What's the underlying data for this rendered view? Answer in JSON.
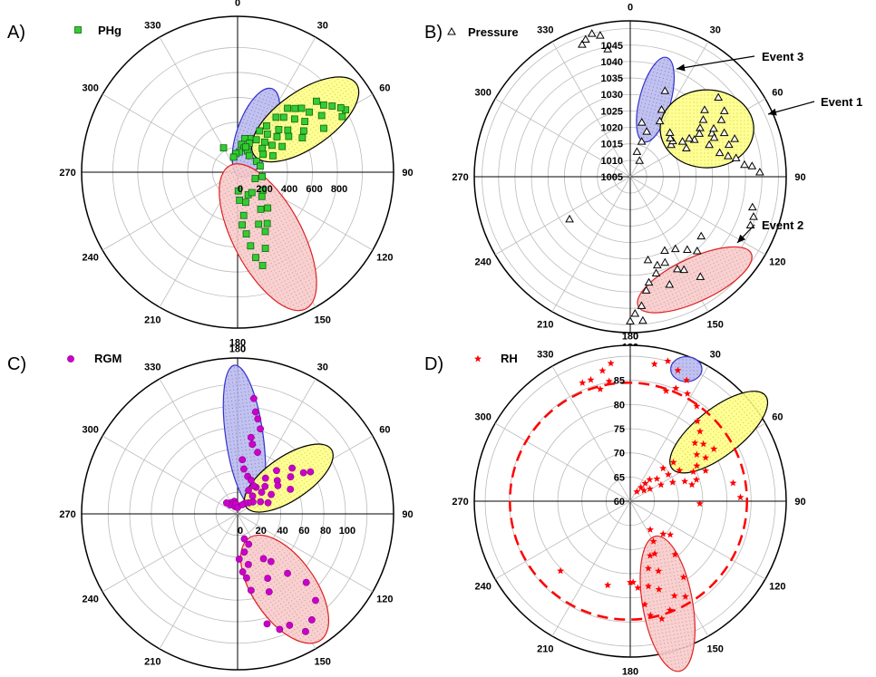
{
  "chart_data": [
    {
      "type": "polar-scatter",
      "panel_label": "A)",
      "legend": "PHg",
      "angular_ticks": [
        "0",
        "30",
        "60",
        "90",
        "120",
        "150",
        "180",
        "210",
        "240",
        "270",
        "300",
        "330"
      ],
      "radial_ticks": [
        "0",
        "200",
        "400",
        "600",
        "800"
      ],
      "rlim": [
        0,
        1000
      ],
      "marker": "square",
      "color": "#33cc33",
      "points": [
        [
          60,
          800
        ],
        [
          58,
          780
        ],
        [
          62,
          760
        ],
        [
          55,
          740
        ],
        [
          52,
          700
        ],
        [
          48,
          680
        ],
        [
          56,
          650
        ],
        [
          63,
          620
        ],
        [
          50,
          600
        ],
        [
          45,
          580
        ],
        [
          42,
          550
        ],
        [
          53,
          540
        ],
        [
          38,
          520
        ],
        [
          47,
          500
        ],
        [
          58,
          500
        ],
        [
          62,
          470
        ],
        [
          40,
          460
        ],
        [
          35,
          430
        ],
        [
          50,
          420
        ],
        [
          55,
          400
        ],
        [
          44,
          380
        ],
        [
          32,
          350
        ],
        [
          48,
          340
        ],
        [
          60,
          330
        ],
        [
          38,
          310
        ],
        [
          28,
          300
        ],
        [
          52,
          280
        ],
        [
          42,
          260
        ],
        [
          65,
          250
        ],
        [
          30,
          240
        ],
        [
          46,
          220
        ],
        [
          55,
          200
        ],
        [
          20,
          230
        ],
        [
          12,
          220
        ],
        [
          8,
          180
        ],
        [
          15,
          160
        ],
        [
          25,
          150
        ],
        [
          35,
          130
        ],
        [
          60,
          140
        ],
        [
          75,
          150
        ],
        [
          5,
          130
        ],
        [
          355,
          120
        ],
        [
          345,
          100
        ],
        [
          330,
          180
        ],
        [
          22,
          200
        ],
        [
          18,
          170
        ],
        [
          100,
          160
        ],
        [
          110,
          120
        ],
        [
          125,
          200
        ],
        [
          135,
          220
        ],
        [
          140,
          300
        ],
        [
          150,
          380
        ],
        [
          155,
          420
        ],
        [
          160,
          520
        ],
        [
          165,
          620
        ],
        [
          168,
          560
        ],
        [
          170,
          480
        ],
        [
          158,
          360
        ],
        [
          148,
          280
        ],
        [
          172,
          280
        ],
        [
          176,
          180
        ],
        [
          165,
          200
        ],
        [
          155,
          160
        ],
        [
          178,
          120
        ],
        [
          145,
          160
        ],
        [
          172,
          400
        ],
        [
          175,
          340
        ]
      ],
      "ellipses": [
        {
          "name": "blue",
          "color": "#3333cc",
          "fill": "#bbbbee"
        },
        {
          "name": "yellow",
          "color": "#000000",
          "fill": "#ffff88"
        },
        {
          "name": "red",
          "color": "#dd2222",
          "fill": "#f7cccc"
        }
      ]
    },
    {
      "type": "polar-scatter",
      "panel_label": "B)",
      "legend": "Pressure",
      "angular_ticks": [
        "0",
        "30",
        "60",
        "90",
        "120",
        "150",
        "180",
        "210",
        "240",
        "270",
        "300",
        "330"
      ],
      "radial_ticks": [
        "1005",
        "1010",
        "1015",
        "1020",
        "1025",
        "1030",
        "1035",
        "1040",
        "1045"
      ],
      "rlim": [
        1005,
        1045
      ],
      "marker": "triangle",
      "color": "#000000",
      "points": [
        [
          22,
          1030
        ],
        [
          25,
          1025
        ],
        [
          20,
          1018
        ],
        [
          15,
          1012
        ],
        [
          18,
          1015
        ],
        [
          28,
          1022
        ],
        [
          12,
          1020
        ],
        [
          30,
          1010
        ],
        [
          48,
          1032
        ],
        [
          52,
          1030
        ],
        [
          55,
          1028
        ],
        [
          58,
          1027
        ],
        [
          60,
          1025
        ],
        [
          62,
          1030
        ],
        [
          65,
          1033
        ],
        [
          70,
          1035
        ],
        [
          72,
          1033
        ],
        [
          68,
          1028
        ],
        [
          56,
          1022
        ],
        [
          63,
          1022
        ],
        [
          52,
          1019
        ],
        [
          50,
          1020
        ],
        [
          46,
          1020
        ],
        [
          42,
          1021
        ],
        [
          58,
          1034
        ],
        [
          55,
          1036
        ],
        [
          48,
          1037
        ],
        [
          75,
          1030
        ],
        [
          78,
          1032
        ],
        [
          80,
          1034
        ],
        [
          85,
          1038
        ],
        [
          88,
          1040
        ],
        [
          84,
          1036
        ],
        [
          65,
          1030
        ],
        [
          60,
          1031
        ],
        [
          57,
          1024
        ],
        [
          104,
          1039
        ],
        [
          108,
          1040
        ],
        [
          112,
          1040
        ],
        [
          130,
          1030
        ],
        [
          138,
          1032
        ],
        [
          142,
          1030
        ],
        [
          148,
          1028
        ],
        [
          150,
          1034
        ],
        [
          153,
          1033
        ],
        [
          158,
          1030
        ],
        [
          163,
          1030
        ],
        [
          165,
          1032
        ],
        [
          170,
          1034
        ],
        [
          175,
          1040
        ],
        [
          178,
          1042
        ],
        [
          180,
          1044
        ],
        [
          175,
          1044
        ],
        [
          172,
          1036
        ],
        [
          168,
          1028
        ],
        [
          160,
          1036
        ],
        [
          145,
          1038
        ],
        [
          155,
          1027
        ],
        [
          235,
          1025
        ],
        [
          340,
          1043
        ],
        [
          342,
          1044
        ],
        [
          345,
          1045
        ],
        [
          348,
          1044
        ],
        [
          350,
          1040
        ]
      ],
      "ellipses": [
        {
          "name": "blue",
          "color": "#3333cc",
          "fill": "#bbbbee"
        },
        {
          "name": "yellow",
          "color": "#000000",
          "fill": "#ffff88"
        },
        {
          "name": "red",
          "color": "#dd2222",
          "fill": "#f7cccc"
        }
      ],
      "annotations": [
        "Event 3",
        "Event 1",
        "Event 2"
      ]
    },
    {
      "type": "polar-scatter",
      "panel_label": "C)",
      "legend": "RGM",
      "angular_ticks": [
        "0",
        "30",
        "60",
        "90",
        "120",
        "150",
        "180",
        "210",
        "240",
        "270",
        "300",
        "330"
      ],
      "top_tick": "180",
      "radial_ticks": [
        "0",
        "20",
        "40",
        "60",
        "80",
        "100"
      ],
      "rlim": [
        0,
        120
      ],
      "marker": "circle",
      "color": "#cc00cc",
      "points": [
        [
          8,
          90
        ],
        [
          10,
          80
        ],
        [
          12,
          75
        ],
        [
          15,
          68
        ],
        [
          10,
          60
        ],
        [
          12,
          55
        ],
        [
          18,
          50
        ],
        [
          5,
          42
        ],
        [
          8,
          35
        ],
        [
          15,
          30
        ],
        [
          22,
          28
        ],
        [
          345,
          10
        ],
        [
          330,
          10
        ],
        [
          320,
          9
        ],
        [
          315,
          12
        ],
        [
          340,
          6
        ],
        [
          350,
          8
        ],
        [
          0,
          5
        ],
        [
          25,
          20
        ],
        [
          35,
          25
        ],
        [
          45,
          30
        ],
        [
          50,
          40
        ],
        [
          55,
          50
        ],
        [
          58,
          60
        ],
        [
          60,
          65
        ],
        [
          50,
          55
        ],
        [
          42,
          45
        ],
        [
          38,
          35
        ],
        [
          30,
          25
        ],
        [
          55,
          38
        ],
        [
          65,
          45
        ],
        [
          48,
          25
        ],
        [
          40,
          18
        ],
        [
          60,
          30
        ],
        [
          70,
          25
        ],
        [
          62,
          20
        ],
        [
          52,
          15
        ],
        [
          45,
          12
        ],
        [
          35,
          10
        ],
        [
          28,
          8
        ],
        [
          170,
          30
        ],
        [
          165,
          20
        ],
        [
          160,
          25
        ],
        [
          150,
          40
        ],
        [
          145,
          45
        ],
        [
          140,
          60
        ],
        [
          135,
          75
        ],
        [
          138,
          90
        ],
        [
          145,
          100
        ],
        [
          150,
          105
        ],
        [
          155,
          95
        ],
        [
          160,
          95
        ],
        [
          165,
          88
        ],
        [
          170,
          60
        ],
        [
          175,
          45
        ],
        [
          178,
          35
        ],
        [
          172,
          50
        ],
        [
          168,
          40
        ],
        [
          155,
          55
        ],
        [
          158,
          65
        ]
      ],
      "ellipses": [
        {
          "name": "blue",
          "color": "#3333cc",
          "fill": "#bbbbee"
        },
        {
          "name": "yellow",
          "color": "#000000",
          "fill": "#ffff88"
        },
        {
          "name": "red",
          "color": "#dd2222",
          "fill": "#f7cccc"
        }
      ]
    },
    {
      "type": "polar-scatter",
      "panel_label": "D)",
      "legend": "RH",
      "angular_ticks": [
        "0",
        "30",
        "60",
        "90",
        "120",
        "150",
        "180",
        "210",
        "240",
        "270",
        "300",
        "330"
      ],
      "top_tick": "180",
      "radial_ticks": [
        "60",
        "65",
        "70",
        "75",
        "80",
        "85"
      ],
      "rlim": [
        60,
        85
      ],
      "marker": "star",
      "color": "#ff0000",
      "points": [
        [
          345,
          80
        ],
        [
          342,
          82
        ],
        [
          348,
          83
        ],
        [
          350,
          81
        ],
        [
          338,
          82
        ],
        [
          352,
          84
        ],
        [
          10,
          84
        ],
        [
          15,
          85
        ],
        [
          20,
          84
        ],
        [
          25,
          83
        ],
        [
          22,
          81
        ],
        [
          18,
          80
        ],
        [
          28,
          81
        ],
        [
          35,
          80
        ],
        [
          40,
          78
        ],
        [
          45,
          77
        ],
        [
          48,
          75
        ],
        [
          52,
          76
        ],
        [
          55,
          74
        ],
        [
          58,
          77
        ],
        [
          60,
          75
        ],
        [
          62,
          73
        ],
        [
          65,
          72
        ],
        [
          58,
          70
        ],
        [
          55,
          68
        ],
        [
          50,
          66
        ],
        [
          48,
          70
        ],
        [
          45,
          68
        ],
        [
          42,
          65
        ],
        [
          40,
          64
        ],
        [
          38,
          63
        ],
        [
          35,
          62
        ],
        [
          52,
          63
        ],
        [
          58,
          64
        ],
        [
          62,
          66
        ],
        [
          66,
          68
        ],
        [
          70,
          70
        ],
        [
          72,
          72
        ],
        [
          68,
          74
        ],
        [
          75,
          71
        ],
        [
          80,
          78
        ],
        [
          88,
          79
        ],
        [
          92,
          72
        ],
        [
          130,
          69
        ],
        [
          135,
          68
        ],
        [
          140,
          72
        ],
        [
          145,
          76
        ],
        [
          150,
          79
        ],
        [
          155,
          78
        ],
        [
          160,
          80
        ],
        [
          165,
          81
        ],
        [
          170,
          80
        ],
        [
          172,
          78
        ],
        [
          168,
          75
        ],
        [
          165,
          72
        ],
        [
          160,
          70
        ],
        [
          155,
          70
        ],
        [
          150,
          68
        ],
        [
          145,
          66
        ],
        [
          175,
          75
        ],
        [
          178,
          74
        ],
        [
          180,
          74
        ],
        [
          162,
          76
        ],
        [
          158,
          73
        ],
        [
          225,
          77
        ],
        [
          195,
          75
        ]
      ],
      "dashed_circle": {
        "color": "#ff0000"
      },
      "ellipses": [
        {
          "name": "blue",
          "color": "#3333cc",
          "fill": "#bbbbee"
        },
        {
          "name": "yellow",
          "color": "#000000",
          "fill": "#ffff88"
        },
        {
          "name": "red",
          "color": "#dd2222",
          "fill": "#f7cccc"
        }
      ]
    }
  ]
}
